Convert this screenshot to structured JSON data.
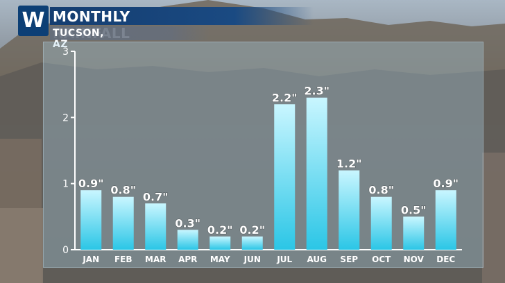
{
  "header": {
    "logo_letter": "W",
    "title": "MONTHLY RAINFALL",
    "subtitle": "TUCSON, AZ"
  },
  "colors": {
    "bar_top": "#c9f6ff",
    "bar_bottom": "#2bc6e6",
    "title_bar": "#143d70",
    "logo_bg": "#0c3f75"
  },
  "chart_data": {
    "type": "bar",
    "title": "MONTHLY RAINFALL",
    "subtitle": "TUCSON, AZ",
    "categories": [
      "JAN",
      "FEB",
      "MAR",
      "APR",
      "MAY",
      "JUN",
      "JUL",
      "AUG",
      "SEP",
      "OCT",
      "NOV",
      "DEC"
    ],
    "values": [
      0.9,
      0.8,
      0.7,
      0.3,
      0.2,
      0.2,
      2.2,
      2.3,
      1.2,
      0.8,
      0.5,
      0.9
    ],
    "data_labels": [
      "0.9\"",
      "0.8\"",
      "0.7\"",
      "0.3\"",
      "0.2\"",
      "0.2\"",
      "2.2\"",
      "2.3\"",
      "1.2\"",
      "0.8\"",
      "0.5\"",
      "0.9\""
    ],
    "yticks": [
      0,
      1,
      2,
      3
    ],
    "ylim": [
      0,
      3
    ],
    "xlabel": "",
    "ylabel": "",
    "grid": false,
    "legend": "none"
  }
}
